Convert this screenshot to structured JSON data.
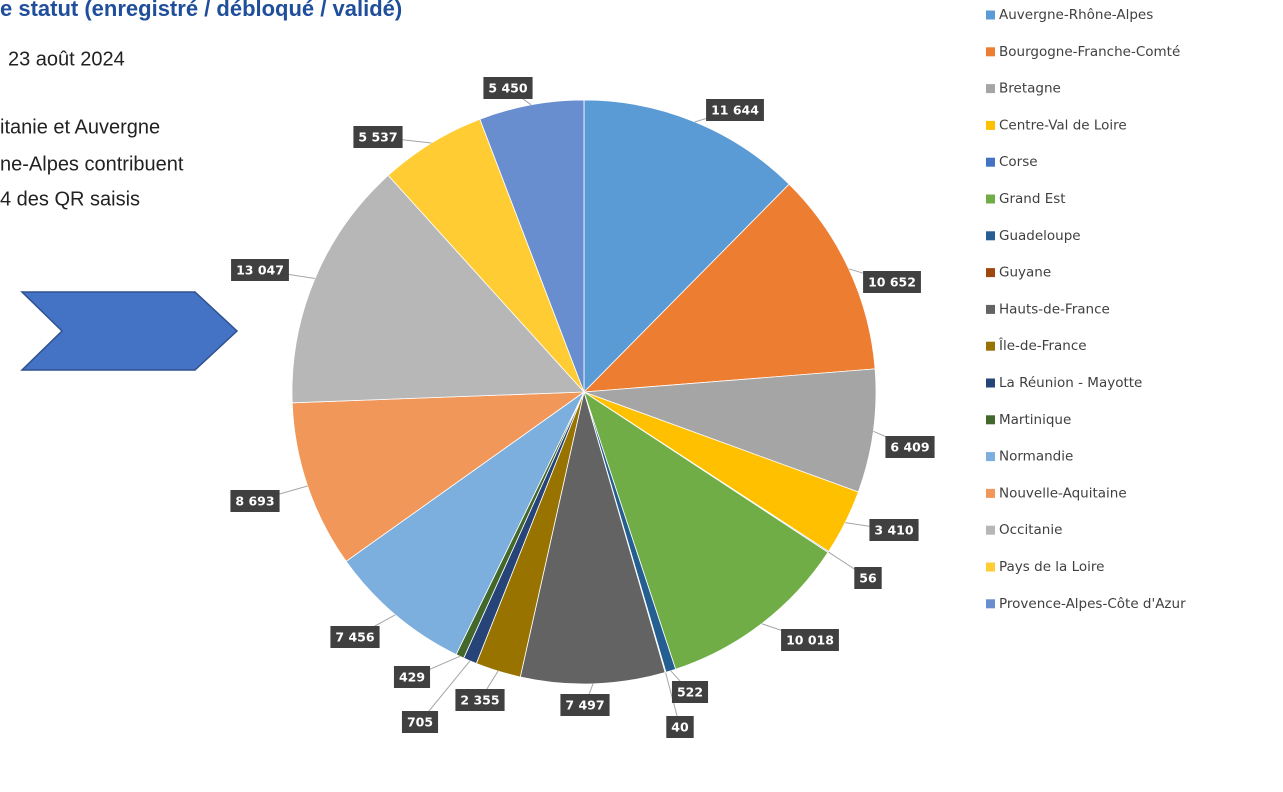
{
  "chart_data": {
    "type": "pie",
    "title": "e statut (enregistré / débloqué / validé)",
    "subtitle": "23 août 2024",
    "annotations": [
      "itanie et Auvergne",
      "ne-Alpes contribuent",
      "4 des QR saisis"
    ],
    "categories": [
      "Auvergne-Rhône-Alpes",
      "Bourgogne-Franche-Comté",
      "Bretagne",
      "Centre-Val de Loire",
      "Corse",
      "Grand Est",
      "Guadeloupe",
      "Guyane",
      "Hauts-de-France",
      "Île-de-France",
      "La Réunion - Mayotte",
      "Martinique",
      "Normandie",
      "Nouvelle-Aquitaine",
      "Occitanie",
      "Pays de la Loire",
      "Provence-Alpes-Côte d'Azur"
    ],
    "values": [
      11644,
      10652,
      6409,
      3410,
      56,
      10018,
      522,
      40,
      7497,
      2355,
      705,
      429,
      7456,
      8693,
      13047,
      5537,
      5450
    ],
    "value_labels": [
      "11 644",
      "10 652",
      "6 409",
      "3 410",
      "56",
      "10 018",
      "522",
      "40",
      "7 497",
      "2 355",
      "705",
      "429",
      "7 456",
      "8 693",
      "13 047",
      "5 537",
      "5 450"
    ],
    "colors": [
      "#5b9bd5",
      "#ed7d31",
      "#a5a5a5",
      "#ffc000",
      "#4472c4",
      "#70ad47",
      "#255e91",
      "#9e480e",
      "#636363",
      "#997300",
      "#264478",
      "#43682b",
      "#7cafdd",
      "#f1975a",
      "#b7b7b7",
      "#ffcd33",
      "#698ed0"
    ],
    "legend": "right"
  }
}
